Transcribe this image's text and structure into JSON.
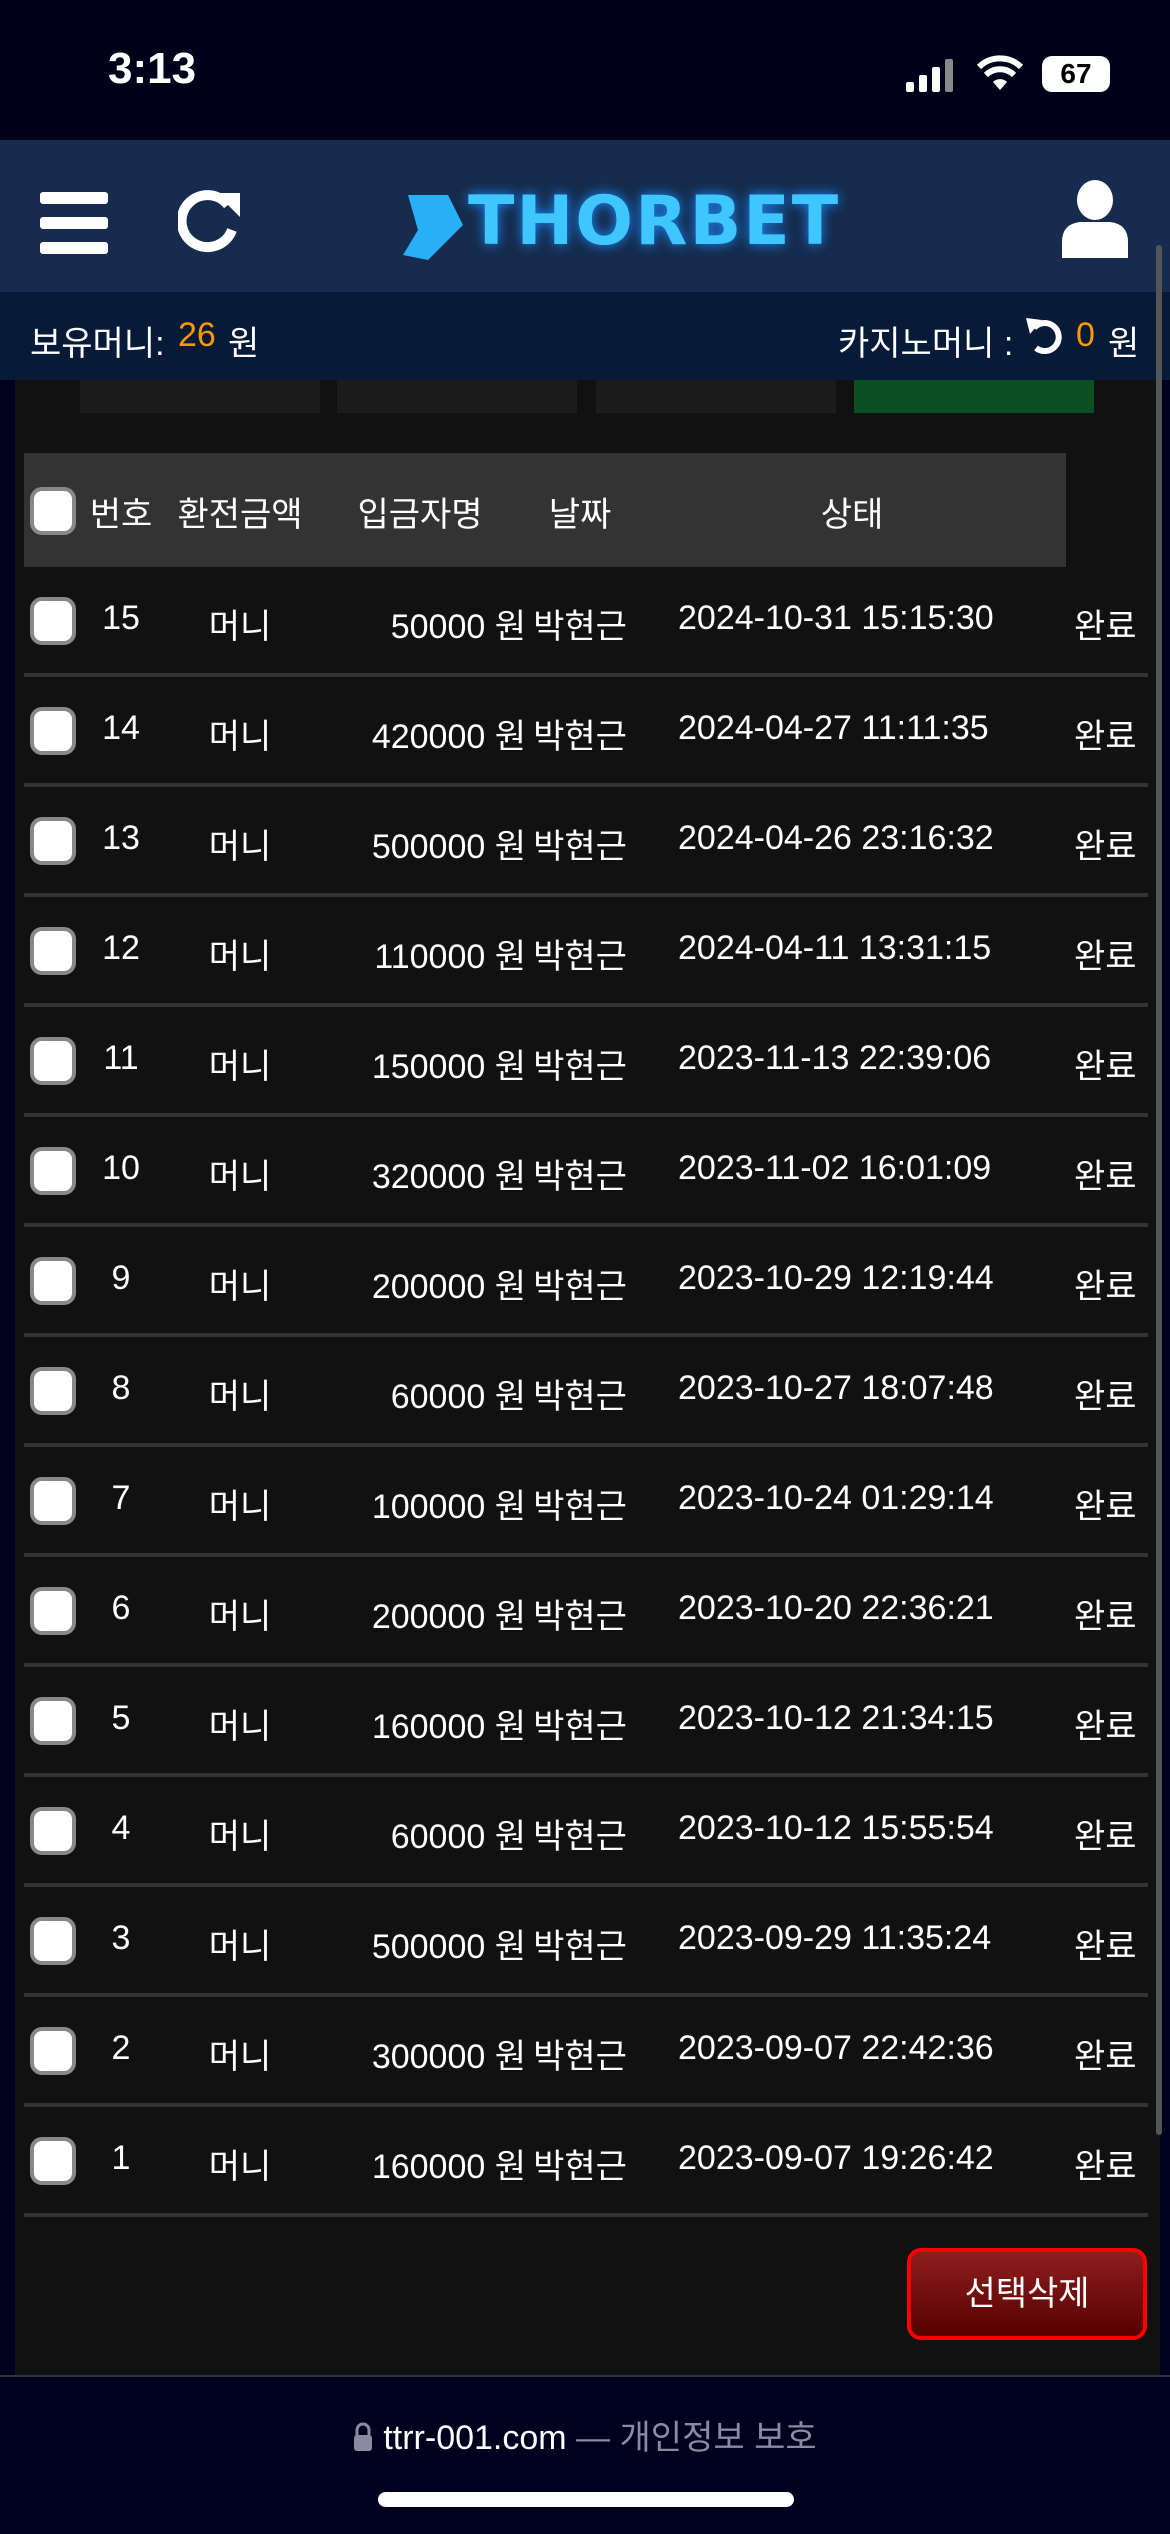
{
  "status_bar": {
    "time": "3:13",
    "battery": "67"
  },
  "header": {
    "logo": "THORBET",
    "menu_icon": "hamburger-icon",
    "refresh_icon": "refresh-icon",
    "user_icon": "user-icon"
  },
  "balance": {
    "label": "보유머니:",
    "value": "26",
    "unit": "원",
    "casino_label": "카지노머니 :",
    "casino_value": "0",
    "casino_unit": "원"
  },
  "colors": {
    "accent": "#ff9900",
    "header_bg": "#162b4d",
    "delete_border": "#ff0000"
  },
  "table": {
    "headers": [
      "번호",
      "환전금액",
      "입금자명",
      "날짜",
      "상태"
    ],
    "rows": [
      {
        "no": "15",
        "type": "머니",
        "amount": "50000 원",
        "name": "박현근",
        "date": "2024-10-31 15:15:30",
        "status": "완료"
      },
      {
        "no": "14",
        "type": "머니",
        "amount": "420000 원",
        "name": "박현근",
        "date": "2024-04-27 11:11:35",
        "status": "완료"
      },
      {
        "no": "13",
        "type": "머니",
        "amount": "500000 원",
        "name": "박현근",
        "date": "2024-04-26 23:16:32",
        "status": "완료"
      },
      {
        "no": "12",
        "type": "머니",
        "amount": "110000 원",
        "name": "박현근",
        "date": "2024-04-11 13:31:15",
        "status": "완료"
      },
      {
        "no": "11",
        "type": "머니",
        "amount": "150000 원",
        "name": "박현근",
        "date": "2023-11-13 22:39:06",
        "status": "완료"
      },
      {
        "no": "10",
        "type": "머니",
        "amount": "320000 원",
        "name": "박현근",
        "date": "2023-11-02 16:01:09",
        "status": "완료"
      },
      {
        "no": "9",
        "type": "머니",
        "amount": "200000 원",
        "name": "박현근",
        "date": "2023-10-29 12:19:44",
        "status": "완료"
      },
      {
        "no": "8",
        "type": "머니",
        "amount": "60000 원",
        "name": "박현근",
        "date": "2023-10-27 18:07:48",
        "status": "완료"
      },
      {
        "no": "7",
        "type": "머니",
        "amount": "100000 원",
        "name": "박현근",
        "date": "2023-10-24 01:29:14",
        "status": "완료"
      },
      {
        "no": "6",
        "type": "머니",
        "amount": "200000 원",
        "name": "박현근",
        "date": "2023-10-20 22:36:21",
        "status": "완료"
      },
      {
        "no": "5",
        "type": "머니",
        "amount": "160000 원",
        "name": "박현근",
        "date": "2023-10-12 21:34:15",
        "status": "완료"
      },
      {
        "no": "4",
        "type": "머니",
        "amount": "60000 원",
        "name": "박현근",
        "date": "2023-10-12 15:55:54",
        "status": "완료"
      },
      {
        "no": "3",
        "type": "머니",
        "amount": "500000 원",
        "name": "박현근",
        "date": "2023-09-29 11:35:24",
        "status": "완료"
      },
      {
        "no": "2",
        "type": "머니",
        "amount": "300000 원",
        "name": "박현근",
        "date": "2023-09-07 22:42:36",
        "status": "완료"
      },
      {
        "no": "1",
        "type": "머니",
        "amount": "160000 원",
        "name": "박현근",
        "date": "2023-09-07 19:26:42",
        "status": "완료"
      }
    ]
  },
  "delete_button": "선택삭제",
  "footer": {
    "url": "ttrr-001.com",
    "separator": "—",
    "privacy": "개인정보 보호"
  }
}
